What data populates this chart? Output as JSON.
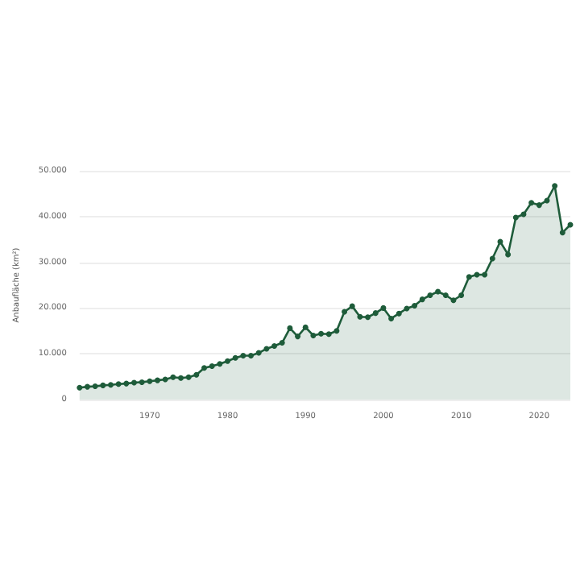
{
  "chart_data": {
    "type": "area",
    "ylabel": "Anbaufläche (km²)",
    "x": [
      1961,
      1962,
      1963,
      1964,
      1965,
      1966,
      1967,
      1968,
      1969,
      1970,
      1971,
      1972,
      1973,
      1974,
      1975,
      1976,
      1977,
      1978,
      1979,
      1980,
      1981,
      1982,
      1983,
      1984,
      1985,
      1986,
      1987,
      1988,
      1989,
      1990,
      1991,
      1992,
      1993,
      1994,
      1995,
      1996,
      1997,
      1998,
      1999,
      2000,
      2001,
      2002,
      2003,
      2004,
      2005,
      2006,
      2007,
      2008,
      2009,
      2010,
      2011,
      2012,
      2013,
      2014,
      2015,
      2016,
      2017,
      2018,
      2019,
      2020,
      2021,
      2022,
      2023,
      2024
    ],
    "series": [
      {
        "color": "#1e5c3a",
        "values": [
          2600,
          2800,
          2900,
          3100,
          3200,
          3400,
          3500,
          3700,
          3800,
          4000,
          4200,
          4400,
          4900,
          4700,
          4900,
          5400,
          6900,
          7300,
          7800,
          8400,
          9100,
          9600,
          9600,
          10200,
          11100,
          11700,
          12400,
          15600,
          13800,
          15800,
          14000,
          14400,
          14300,
          15000,
          19200,
          20400,
          18100,
          18000,
          18900,
          20000,
          17700,
          18800,
          19900,
          20500,
          21900,
          22800,
          23600,
          22800,
          21700,
          22800,
          26800,
          27300,
          27300,
          30800,
          34500,
          31700,
          39800,
          40500,
          43000,
          42500,
          43500,
          46700,
          36500,
          38200
        ]
      }
    ],
    "xlim": [
      1961,
      2024
    ],
    "xticks": [
      1970,
      1980,
      1990,
      2000,
      2010,
      2020
    ],
    "ylim": [
      0,
      50000
    ],
    "yticks": [
      0,
      {
        "value": 10000,
        "label": "10.000"
      },
      {
        "value": 20000,
        "label": "20.000"
      },
      {
        "value": 30000,
        "label": "30.000"
      },
      {
        "value": 40000,
        "label": "40.000"
      },
      {
        "value": 50000,
        "label": "50.000"
      }
    ],
    "grid": "y",
    "marker": "circle",
    "line_style": "solid"
  }
}
